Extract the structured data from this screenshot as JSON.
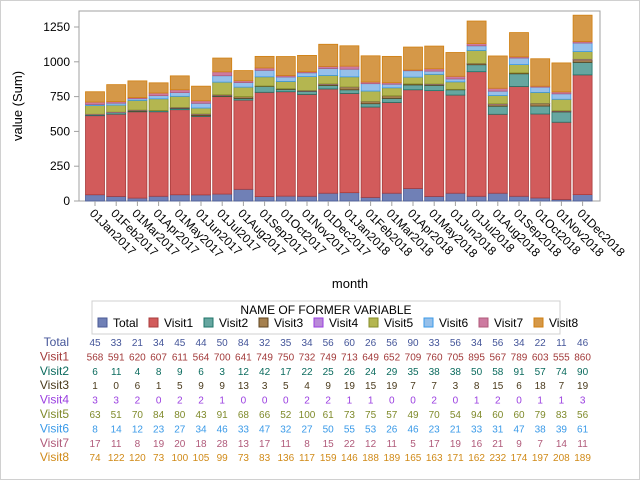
{
  "chart_data": {
    "type": "bar",
    "stacked": true,
    "xlabel": "month",
    "ylabel": "value (Sum)",
    "ylim": [
      0,
      1365
    ],
    "yticks": [
      0,
      250,
      500,
      750,
      1000,
      1250
    ],
    "grid": false,
    "legend_title": "NAME OF FORMER VARIABLE",
    "legend_placement": "bottom",
    "categories": [
      "01Jan2017",
      "01Feb2017",
      "01Mar2017",
      "01Apr2017",
      "01May2017",
      "01Jun2017",
      "01Jul2017",
      "01Aug2017",
      "01Sep2017",
      "01Oct2017",
      "01Nov2017",
      "01Dec2017",
      "01Jan2018",
      "01Feb2018",
      "01Mar2018",
      "01Apr2018",
      "01May2018",
      "01Jun2018",
      "01Jul2018",
      "01Aug2018",
      "01Sep2018",
      "01Oct2018",
      "01Nov2018",
      "01Dec2018"
    ],
    "series": [
      {
        "name": "Total",
        "fill": "#7080b6",
        "stroke": "#4a5a96",
        "text": "#445599",
        "values": [
          45,
          33,
          21,
          34,
          45,
          44,
          50,
          84,
          32,
          35,
          34,
          56,
          60,
          26,
          56,
          90,
          33,
          56,
          34,
          56,
          34,
          22,
          11,
          46
        ]
      },
      {
        "name": "Visit1",
        "fill": "#d25b5b",
        "stroke": "#a83c3c",
        "text": "#a23a3a",
        "values": [
          568,
          591,
          620,
          607,
          611,
          564,
          700,
          641,
          749,
          750,
          732,
          749,
          713,
          649,
          652,
          709,
          760,
          705,
          895,
          567,
          789,
          603,
          555,
          860
        ]
      },
      {
        "name": "Visit2",
        "fill": "#66a6a0",
        "stroke": "#1e7468",
        "text": "#0b6b5e",
        "values": [
          6,
          11,
          4,
          8,
          9,
          6,
          3,
          12,
          42,
          17,
          22,
          25,
          26,
          24,
          29,
          35,
          38,
          38,
          50,
          58,
          91,
          57,
          74,
          90
        ]
      },
      {
        "name": "Visit3",
        "fill": "#a5804e",
        "stroke": "#5e4420",
        "text": "#4a3a1c",
        "values": [
          1,
          0,
          6,
          1,
          5,
          9,
          9,
          13,
          3,
          5,
          4,
          9,
          19,
          15,
          19,
          7,
          7,
          3,
          8,
          15,
          6,
          18,
          7,
          19
        ]
      },
      {
        "name": "Visit4",
        "fill": "#b98ad8",
        "stroke": "#9a3ee0",
        "text": "#9a3ee0",
        "values": [
          3,
          3,
          2,
          0,
          2,
          2,
          1,
          0,
          0,
          0,
          2,
          2,
          1,
          1,
          0,
          0,
          2,
          0,
          1,
          2,
          0,
          1,
          1,
          3
        ]
      },
      {
        "name": "Visit5",
        "fill": "#b4b650",
        "stroke": "#868c2a",
        "text": "#7f8a2a",
        "values": [
          63,
          51,
          70,
          84,
          80,
          43,
          91,
          68,
          66,
          52,
          100,
          61,
          73,
          75,
          57,
          49,
          70,
          54,
          94,
          60,
          60,
          79,
          83,
          56
        ]
      },
      {
        "name": "Visit6",
        "fill": "#96c0ea",
        "stroke": "#3a9ae8",
        "text": "#3a9ae8",
        "values": [
          8,
          14,
          12,
          23,
          27,
          34,
          46,
          33,
          47,
          32,
          27,
          50,
          55,
          53,
          26,
          46,
          23,
          21,
          33,
          31,
          47,
          38,
          39,
          61
        ]
      },
      {
        "name": "Visit7",
        "fill": "#cd7aa0",
        "stroke": "#b05a7a",
        "text": "#b05a7a",
        "values": [
          17,
          11,
          8,
          19,
          20,
          18,
          28,
          13,
          17,
          11,
          8,
          15,
          22,
          12,
          11,
          5,
          17,
          19,
          16,
          21,
          9,
          7,
          14,
          11
        ]
      },
      {
        "name": "Visit8",
        "fill": "#d59848",
        "stroke": "#d07f10",
        "text": "#d08a18",
        "values": [
          74,
          122,
          120,
          73,
          100,
          105,
          99,
          73,
          83,
          136,
          117,
          159,
          146,
          188,
          189,
          165,
          163,
          171,
          162,
          232,
          174,
          197,
          208,
          189
        ]
      }
    ]
  }
}
